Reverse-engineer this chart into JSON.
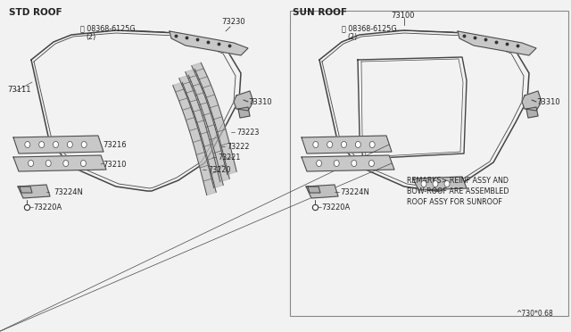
{
  "bg_color": "#f2f2f2",
  "line_color": "#444444",
  "text_color": "#222222",
  "title_left": "STD ROOF",
  "title_right": "SUN ROOF",
  "part_number_right": "73100",
  "remarks_line1": "REMARKS> REINF ASSY AND",
  "remarks_line2": "BOW-ROOF ARE ASSEMBLED",
  "remarks_line3": "ROOF ASSY FOR SUNROOF",
  "diagram_ref": "^730*0.68",
  "bolt_text1": "Ⓜ 08368-6125G",
  "bolt_text2": "(2)"
}
